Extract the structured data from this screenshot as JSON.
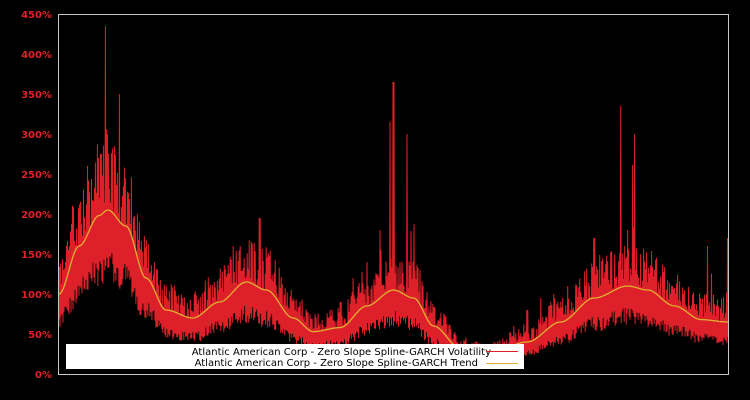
{
  "chart_data": {
    "type": "line",
    "title": "",
    "xlabel": "",
    "ylabel": "",
    "ylim": [
      0,
      450
    ],
    "y_tick_labels": [
      "0%",
      "50%",
      "100%",
      "150%",
      "200%",
      "250%",
      "300%",
      "350%",
      "400%",
      "450%"
    ],
    "y_ticks": [
      0,
      50,
      100,
      150,
      200,
      250,
      300,
      350,
      400,
      450
    ],
    "x_tick_labels": [],
    "grid": false,
    "legend_position": "lower-left",
    "background": "#000000",
    "series": [
      {
        "name": "Atlantic American Corp - Zero Slope Spline-GARCH Volatility",
        "color": "#dd2029",
        "note": "noisy daily series; values approximate, x normalized 0-1 across time",
        "x": [
          0.0,
          0.02,
          0.04,
          0.055,
          0.07,
          0.08,
          0.09,
          0.1,
          0.12,
          0.14,
          0.17,
          0.2,
          0.23,
          0.26,
          0.28,
          0.3,
          0.33,
          0.36,
          0.38,
          0.4,
          0.42,
          0.44,
          0.46,
          0.48,
          0.5,
          0.52,
          0.54,
          0.56,
          0.58,
          0.6,
          0.62,
          0.65,
          0.68,
          0.7,
          0.72,
          0.74,
          0.76,
          0.8,
          0.84,
          0.85,
          0.86,
          0.88,
          0.9,
          0.92,
          0.95,
          0.97,
          0.99,
          1.0
        ],
        "values": [
          60,
          160,
          200,
          240,
          435,
          280,
          350,
          240,
          150,
          110,
          90,
          80,
          110,
          160,
          150,
          195,
          90,
          70,
          60,
          75,
          90,
          120,
          140,
          180,
          365,
          300,
          130,
          80,
          50,
          45,
          35,
          40,
          60,
          80,
          95,
          100,
          110,
          170,
          335,
          180,
          300,
          120,
          90,
          80,
          70,
          160,
          60,
          170
        ]
      },
      {
        "name": "Atlantic American Corp - Zero Slope Spline-GARCH Trend",
        "color": "#e0b030",
        "x": [
          0.0,
          0.03,
          0.06,
          0.073,
          0.1,
          0.13,
          0.16,
          0.2,
          0.24,
          0.28,
          0.31,
          0.35,
          0.38,
          0.42,
          0.46,
          0.5,
          0.53,
          0.56,
          0.6,
          0.64,
          0.7,
          0.75,
          0.8,
          0.85,
          0.88,
          0.92,
          0.96,
          1.0
        ],
        "values": [
          100,
          160,
          198,
          205,
          185,
          120,
          80,
          70,
          90,
          115,
          105,
          70,
          53,
          58,
          85,
          105,
          95,
          60,
          32,
          25,
          40,
          65,
          95,
          110,
          105,
          85,
          68,
          65
        ]
      }
    ]
  },
  "legend": {
    "items": [
      {
        "label": "Atlantic American Corp - Zero Slope Spline-GARCH Volatility",
        "color": "#dd2029"
      },
      {
        "label": "Atlantic American Corp - Zero Slope Spline-GARCH Trend",
        "color": "#e0b030"
      }
    ]
  },
  "colors": {
    "background": "#000000",
    "axis": "#c8c8c8",
    "tick_label": "#e0202a",
    "legend_bg": "#ffffff",
    "legend_text": "#000000"
  }
}
